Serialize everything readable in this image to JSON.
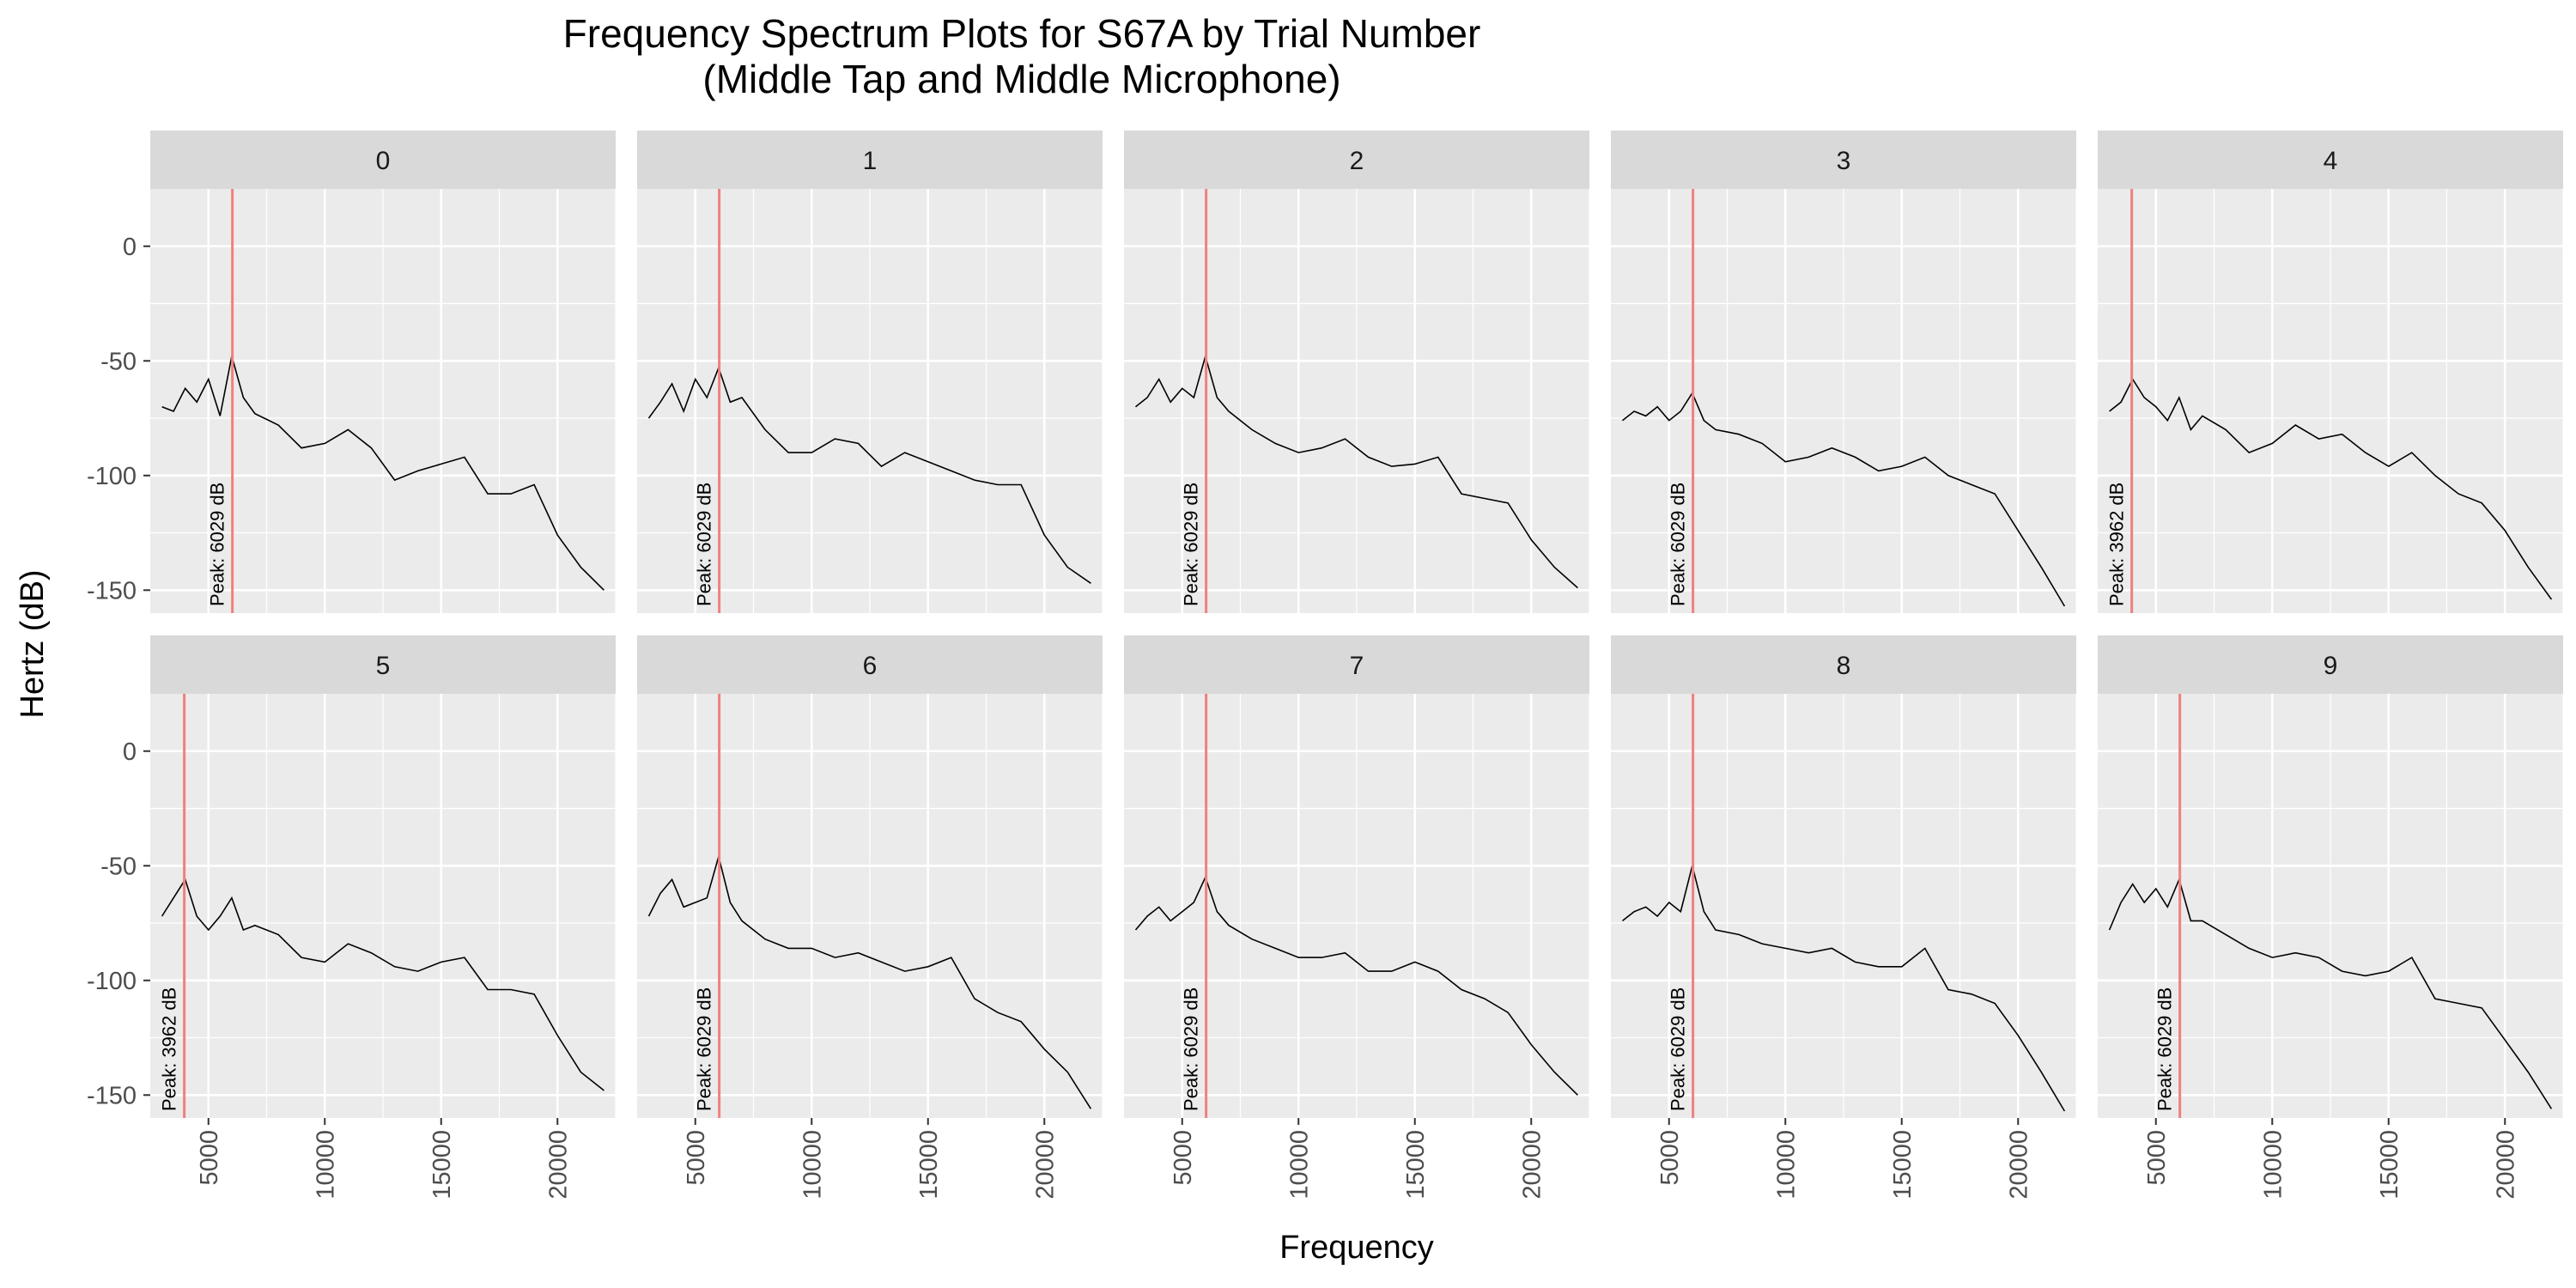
{
  "chart_data": {
    "type": "line",
    "title_line1": "Frequency Spectrum Plots for  S67A  by Trial Number",
    "title_line2": "(Middle Tap and Middle Microphone)",
    "xlabel": "Frequency",
    "ylabel": "Hertz (dB)",
    "xlim": [
      2500,
      22500
    ],
    "ylim": [
      -160,
      25
    ],
    "x_ticks": [
      5000,
      10000,
      15000,
      20000
    ],
    "y_ticks": [
      0,
      -50,
      -100,
      -150
    ],
    "x_tick_labels": [
      "5000",
      "10000",
      "15000",
      "20000"
    ],
    "y_tick_labels": [
      "0",
      "-50",
      "-100",
      "-150"
    ],
    "peak_line_color": "#F08080",
    "line_color": "#000000",
    "panel_bg": "#EBEBEB",
    "strip_bg": "#D9D9D9",
    "panels": [
      {
        "trial": "0",
        "peak_freq": 6029,
        "peak_label": "Peak:  6029 dB",
        "x": [
          3000,
          3500,
          4000,
          4500,
          5000,
          5500,
          6000,
          6500,
          7000,
          8000,
          9000,
          10000,
          11000,
          12000,
          13000,
          14000,
          15000,
          16000,
          17000,
          18000,
          19000,
          20000,
          21000,
          22000
        ],
        "y": [
          -70,
          -72,
          -62,
          -68,
          -58,
          -74,
          -48,
          -66,
          -73,
          -78,
          -88,
          -86,
          -80,
          -88,
          -102,
          -98,
          -95,
          -92,
          -108,
          -108,
          -104,
          -126,
          -140,
          -150
        ]
      },
      {
        "trial": "1",
        "peak_freq": 6029,
        "peak_label": "Peak:  6029 dB",
        "x": [
          3000,
          3500,
          4000,
          4500,
          5000,
          5500,
          6000,
          6500,
          7000,
          8000,
          9000,
          10000,
          11000,
          12000,
          13000,
          14000,
          15000,
          16000,
          17000,
          18000,
          19000,
          20000,
          21000,
          22000
        ],
        "y": [
          -75,
          -68,
          -60,
          -72,
          -58,
          -66,
          -53,
          -68,
          -66,
          -80,
          -90,
          -90,
          -84,
          -86,
          -96,
          -90,
          -94,
          -98,
          -102,
          -104,
          -104,
          -126,
          -140,
          -147
        ]
      },
      {
        "trial": "2",
        "peak_freq": 6029,
        "peak_label": "Peak:  6029 dB",
        "x": [
          3000,
          3500,
          4000,
          4500,
          5000,
          5500,
          6000,
          6500,
          7000,
          8000,
          9000,
          10000,
          11000,
          12000,
          13000,
          14000,
          15000,
          16000,
          17000,
          18000,
          19000,
          20000,
          21000,
          22000
        ],
        "y": [
          -70,
          -66,
          -58,
          -68,
          -62,
          -66,
          -48,
          -66,
          -72,
          -80,
          -86,
          -90,
          -88,
          -84,
          -92,
          -96,
          -95,
          -92,
          -108,
          -110,
          -112,
          -128,
          -140,
          -149
        ]
      },
      {
        "trial": "3",
        "peak_freq": 6029,
        "peak_label": "Peak:  6029 dB",
        "x": [
          3000,
          3500,
          4000,
          4500,
          5000,
          5500,
          6000,
          6500,
          7000,
          8000,
          9000,
          10000,
          11000,
          12000,
          13000,
          14000,
          15000,
          16000,
          17000,
          18000,
          19000,
          20000,
          21000,
          22000
        ],
        "y": [
          -76,
          -72,
          -74,
          -70,
          -76,
          -72,
          -64,
          -76,
          -80,
          -82,
          -86,
          -94,
          -92,
          -88,
          -92,
          -98,
          -96,
          -92,
          -100,
          -104,
          -108,
          -124,
          -140,
          -157
        ]
      },
      {
        "trial": "4",
        "peak_freq": 3962,
        "peak_label": "Peak:  3962 dB",
        "x": [
          3000,
          3500,
          4000,
          4500,
          5000,
          5500,
          6000,
          6500,
          7000,
          8000,
          9000,
          10000,
          11000,
          12000,
          13000,
          14000,
          15000,
          16000,
          17000,
          18000,
          19000,
          20000,
          21000,
          22000
        ],
        "y": [
          -72,
          -68,
          -58,
          -66,
          -70,
          -76,
          -66,
          -80,
          -74,
          -80,
          -90,
          -86,
          -78,
          -84,
          -82,
          -90,
          -96,
          -90,
          -100,
          -108,
          -112,
          -124,
          -140,
          -154
        ]
      },
      {
        "trial": "5",
        "peak_freq": 3962,
        "peak_label": "Peak:  3962 dB",
        "x": [
          3000,
          3500,
          4000,
          4500,
          5000,
          5500,
          6000,
          6500,
          7000,
          8000,
          9000,
          10000,
          11000,
          12000,
          13000,
          14000,
          15000,
          16000,
          17000,
          18000,
          19000,
          20000,
          21000,
          22000
        ],
        "y": [
          -72,
          -64,
          -56,
          -72,
          -78,
          -72,
          -64,
          -78,
          -76,
          -80,
          -90,
          -92,
          -84,
          -88,
          -94,
          -96,
          -92,
          -90,
          -104,
          -104,
          -106,
          -124,
          -140,
          -148
        ]
      },
      {
        "trial": "6",
        "peak_freq": 6029,
        "peak_label": "Peak:  6029 dB",
        "x": [
          3000,
          3500,
          4000,
          4500,
          5000,
          5500,
          6000,
          6500,
          7000,
          8000,
          9000,
          10000,
          11000,
          12000,
          13000,
          14000,
          15000,
          16000,
          17000,
          18000,
          19000,
          20000,
          21000,
          22000
        ],
        "y": [
          -72,
          -62,
          -56,
          -68,
          -66,
          -64,
          -46,
          -66,
          -74,
          -82,
          -86,
          -86,
          -90,
          -88,
          -92,
          -96,
          -94,
          -90,
          -108,
          -114,
          -118,
          -130,
          -140,
          -156
        ]
      },
      {
        "trial": "7",
        "peak_freq": 6029,
        "peak_label": "Peak:  6029 dB",
        "x": [
          3000,
          3500,
          4000,
          4500,
          5000,
          5500,
          6000,
          6500,
          7000,
          8000,
          9000,
          10000,
          11000,
          12000,
          13000,
          14000,
          15000,
          16000,
          17000,
          18000,
          19000,
          20000,
          21000,
          22000
        ],
        "y": [
          -78,
          -72,
          -68,
          -74,
          -70,
          -66,
          -55,
          -70,
          -76,
          -82,
          -86,
          -90,
          -90,
          -88,
          -96,
          -96,
          -92,
          -96,
          -104,
          -108,
          -114,
          -128,
          -140,
          -150
        ]
      },
      {
        "trial": "8",
        "peak_freq": 6029,
        "peak_label": "Peak:  6029 dB",
        "x": [
          3000,
          3500,
          4000,
          4500,
          5000,
          5500,
          6000,
          6500,
          7000,
          8000,
          9000,
          10000,
          11000,
          12000,
          13000,
          14000,
          15000,
          16000,
          17000,
          18000,
          19000,
          20000,
          21000,
          22000
        ],
        "y": [
          -74,
          -70,
          -68,
          -72,
          -66,
          -70,
          -50,
          -70,
          -78,
          -80,
          -84,
          -86,
          -88,
          -86,
          -92,
          -94,
          -94,
          -86,
          -104,
          -106,
          -110,
          -124,
          -140,
          -157
        ]
      },
      {
        "trial": "9",
        "peak_freq": 6029,
        "peak_label": "Peak:  6029 dB",
        "x": [
          3000,
          3500,
          4000,
          4500,
          5000,
          5500,
          6000,
          6500,
          7000,
          8000,
          9000,
          10000,
          11000,
          12000,
          13000,
          14000,
          15000,
          16000,
          17000,
          18000,
          19000,
          20000,
          21000,
          22000
        ],
        "y": [
          -78,
          -66,
          -58,
          -66,
          -60,
          -68,
          -56,
          -74,
          -74,
          -80,
          -86,
          -90,
          -88,
          -90,
          -96,
          -98,
          -96,
          -90,
          -108,
          -110,
          -112,
          -126,
          -140,
          -156
        ]
      }
    ]
  }
}
